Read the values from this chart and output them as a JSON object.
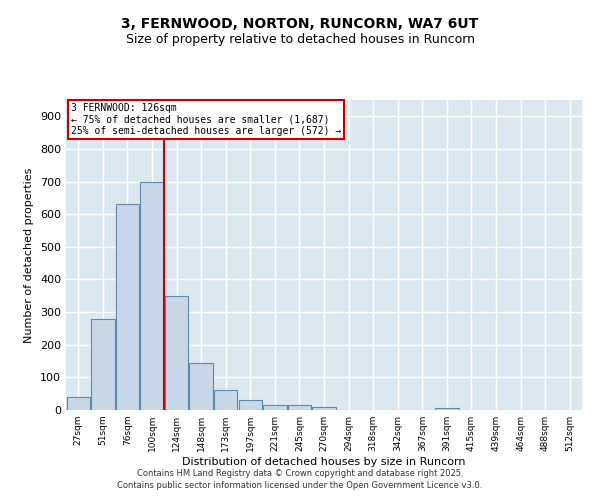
{
  "title1": "3, FERNWOOD, NORTON, RUNCORN, WA7 6UT",
  "title2": "Size of property relative to detached houses in Runcorn",
  "xlabel": "Distribution of detached houses by size in Runcorn",
  "ylabel": "Number of detached properties",
  "bar_labels": [
    "27sqm",
    "51sqm",
    "76sqm",
    "100sqm",
    "124sqm",
    "148sqm",
    "173sqm",
    "197sqm",
    "221sqm",
    "245sqm",
    "270sqm",
    "294sqm",
    "318sqm",
    "342sqm",
    "367sqm",
    "391sqm",
    "415sqm",
    "439sqm",
    "464sqm",
    "488sqm",
    "512sqm"
  ],
  "bar_values": [
    40,
    280,
    630,
    700,
    350,
    145,
    60,
    30,
    15,
    15,
    10,
    0,
    0,
    0,
    0,
    5,
    0,
    0,
    0,
    0,
    0
  ],
  "bar_color": "#c8d8e8",
  "bar_edge_color": "#5a8ab0",
  "vline_x_index": 4,
  "vline_color": "#cc0000",
  "annotation_title": "3 FERNWOOD: 126sqm",
  "annotation_line1": "← 75% of detached houses are smaller (1,687)",
  "annotation_line2": "25% of semi-detached houses are larger (572) →",
  "annotation_box_color": "#cc0000",
  "ylim": [
    0,
    950
  ],
  "yticks": [
    0,
    100,
    200,
    300,
    400,
    500,
    600,
    700,
    800,
    900
  ],
  "background_color": "#dce8f0",
  "grid_color": "#ffffff",
  "footer1": "Contains HM Land Registry data © Crown copyright and database right 2025.",
  "footer2": "Contains public sector information licensed under the Open Government Licence v3.0."
}
